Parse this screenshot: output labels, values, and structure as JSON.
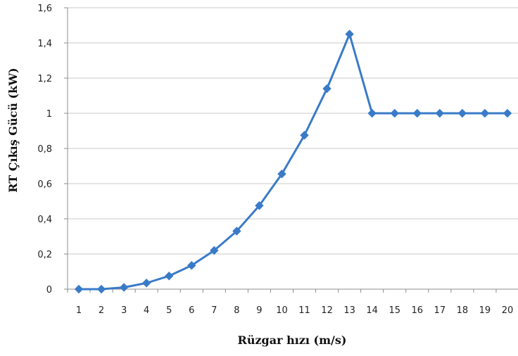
{
  "chart_data": {
    "type": "line",
    "xlabel": "Rüzgar hızı (m/s)",
    "ylabel": "RT Çıkış Gücü (kW)",
    "ylim": [
      0,
      1.6
    ],
    "yticks": [
      "0",
      "0,2",
      "0,4",
      "0,6",
      "0,8",
      "1",
      "1,2",
      "1,4",
      "1,6"
    ],
    "categories": [
      "1",
      "2",
      "3",
      "4",
      "5",
      "6",
      "7",
      "8",
      "9",
      "10",
      "11",
      "12",
      "13",
      "14",
      "15",
      "16",
      "17",
      "18",
      "19",
      "20"
    ],
    "series": [
      {
        "values": [
          0.0,
          0.0,
          0.01,
          0.035,
          0.075,
          0.135,
          0.22,
          0.33,
          0.475,
          0.655,
          0.875,
          1.14,
          1.45,
          1.0,
          1.0,
          1.0,
          1.0,
          1.0,
          1.0,
          1.0
        ],
        "color": "#3a7bc8",
        "marker": "diamond"
      }
    ],
    "grid": "horizontal",
    "legend": "none"
  }
}
